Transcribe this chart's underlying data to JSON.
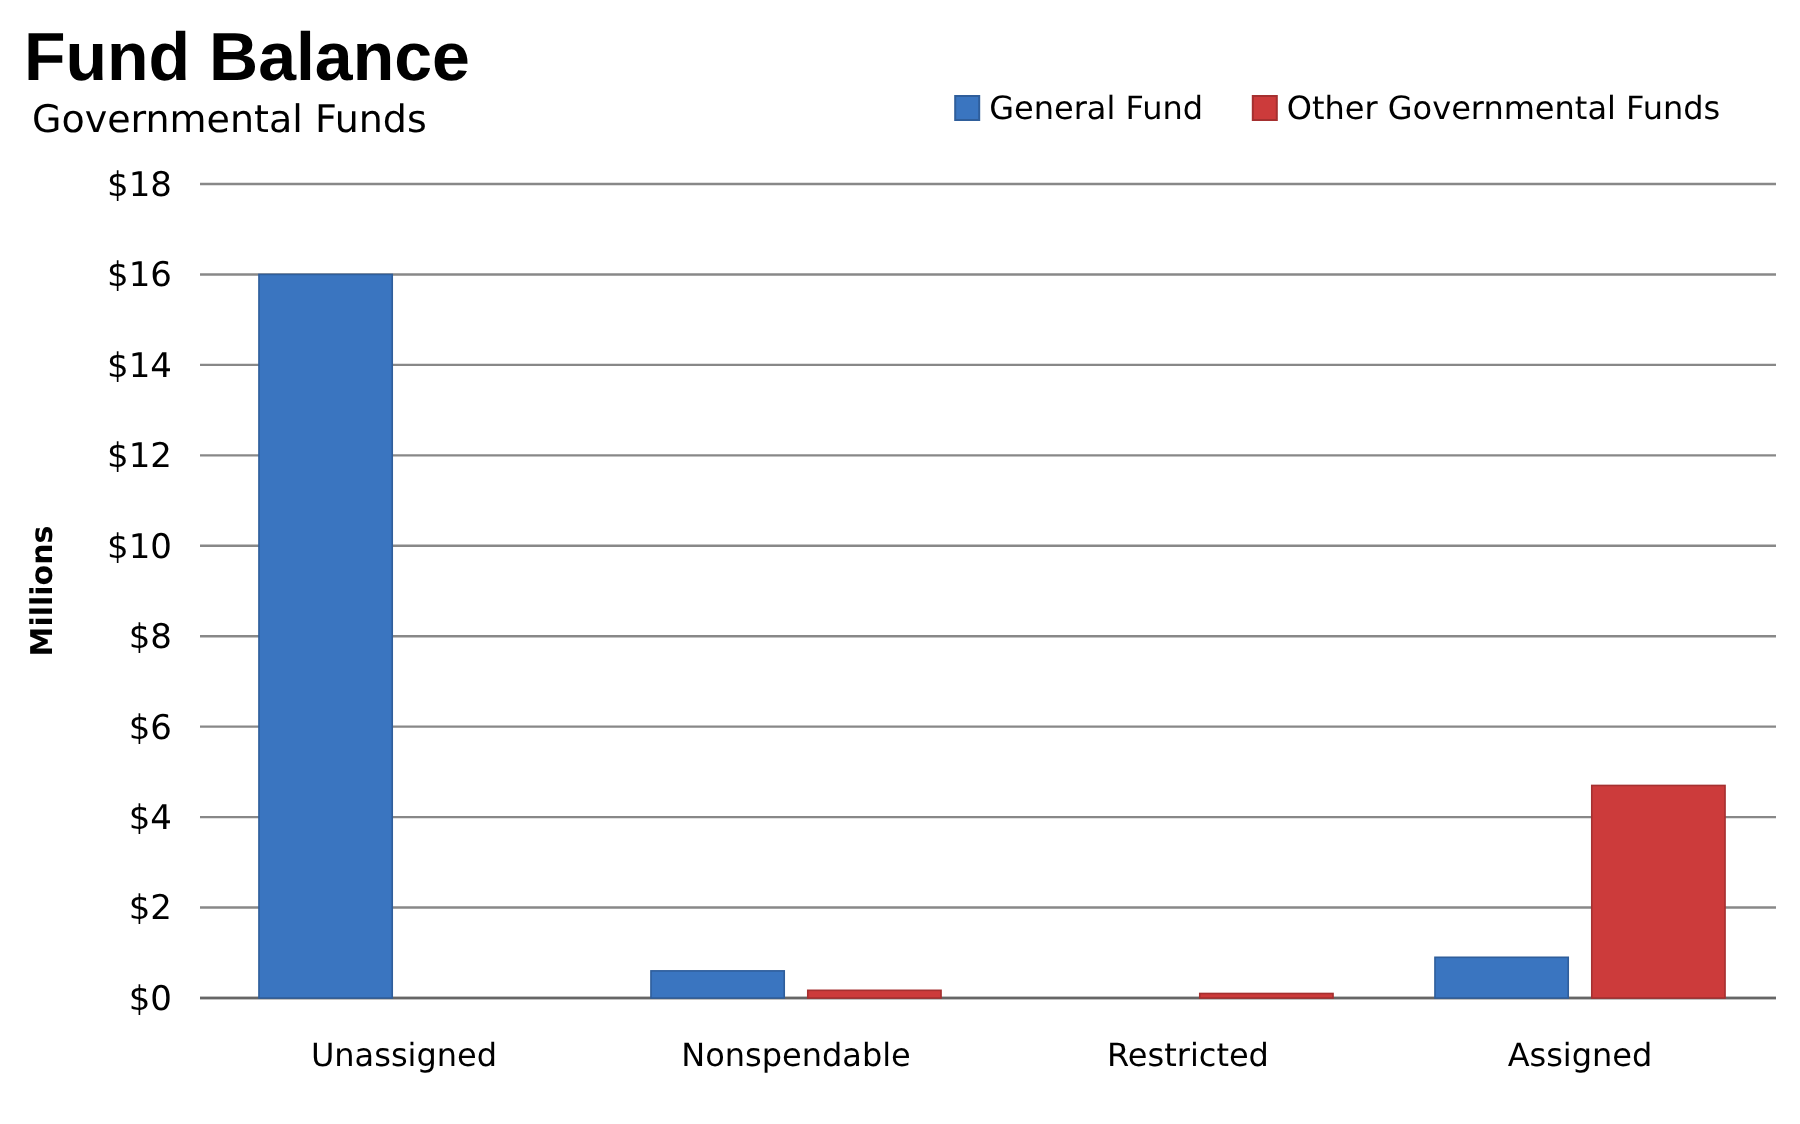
{
  "chart_data": {
    "type": "bar",
    "title": "Fund Balance",
    "subtitle": "Governmental Funds",
    "ylabel": "Millions",
    "categories": [
      "Unassigned",
      "Nonspendable",
      "Restricted",
      "Assigned"
    ],
    "series": [
      {
        "name": "General Fund",
        "color": "#3a75c0",
        "values": [
          16,
          0.6,
          0,
          0.9
        ]
      },
      {
        "name": "Other Governmental Funds",
        "color": "#cc3b3b",
        "values": [
          0,
          0.17,
          0.1,
          4.7
        ]
      }
    ],
    "ylim": [
      0,
      18
    ],
    "yticks": [
      {
        "value": 0,
        "label": "$0"
      },
      {
        "value": 2,
        "label": "$2"
      },
      {
        "value": 4,
        "label": "$4"
      },
      {
        "value": 6,
        "label": "$6"
      },
      {
        "value": 8,
        "label": "$8"
      },
      {
        "value": 10,
        "label": "$10"
      },
      {
        "value": 12,
        "label": "$12"
      },
      {
        "value": 14,
        "label": "$14"
      },
      {
        "value": 16,
        "label": "$16"
      },
      {
        "value": 18,
        "label": "$18"
      }
    ],
    "grid": "y",
    "legend": "top right"
  }
}
